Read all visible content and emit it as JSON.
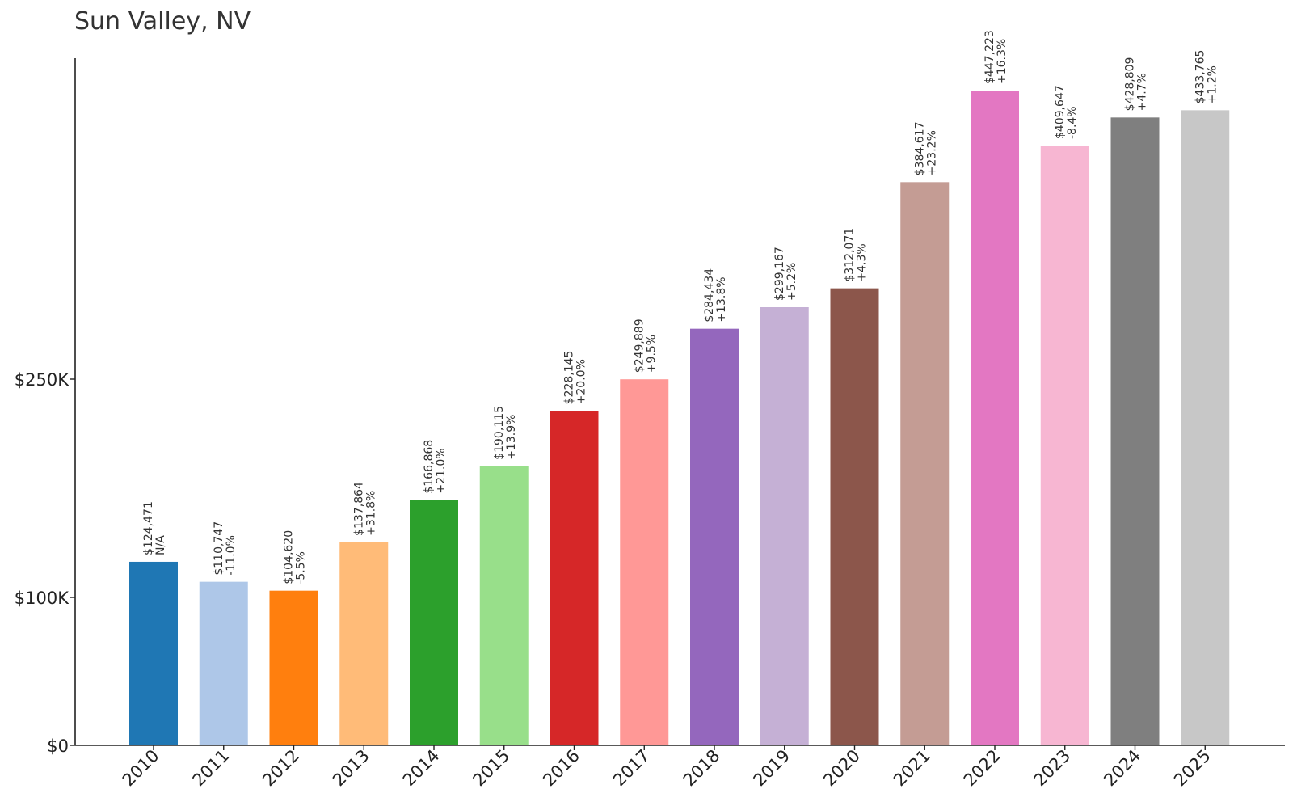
{
  "chart_data": {
    "type": "bar",
    "title": "Sun Valley, NV",
    "xlabel": "",
    "ylabel": "",
    "categories": [
      "2010",
      "2011",
      "2012",
      "2013",
      "2014",
      "2015",
      "2016",
      "2017",
      "2018",
      "2019",
      "2020",
      "2021",
      "2022",
      "2023",
      "2024",
      "2025"
    ],
    "values": [
      124471,
      110747,
      104620,
      137864,
      166868,
      190115,
      228145,
      249889,
      284434,
      299167,
      312071,
      384617,
      447223,
      409647,
      428809,
      433765
    ],
    "value_labels": [
      "$124,471",
      "$110,747",
      "$104,620",
      "$137,864",
      "$166,868",
      "$190,115",
      "$228,145",
      "$249,889",
      "$284,434",
      "$299,167",
      "$312,071",
      "$384,617",
      "$447,223",
      "$409,647",
      "$428,809",
      "$433,765"
    ],
    "change_labels": [
      "N/A",
      "-11.0%",
      "-5.5%",
      "+31.8%",
      "+21.0%",
      "+13.9%",
      "+20.0%",
      "+9.5%",
      "+13.8%",
      "+5.2%",
      "+4.3%",
      "+23.2%",
      "+16.3%",
      "-8.4%",
      "+4.7%",
      "+1.2%"
    ],
    "yticks": [
      0,
      100000,
      250000
    ],
    "ytick_labels": [
      "$0",
      "$100K",
      "$250K"
    ],
    "ylim": [
      0,
      470000
    ],
    "grid": false,
    "legend": "none",
    "colors": [
      "#1f77b4",
      "#aec7e8",
      "#ff7f0e",
      "#ffbb78",
      "#2ca02c",
      "#98df8a",
      "#d62728",
      "#ff9896",
      "#9467bd",
      "#c5b0d5",
      "#8c564b",
      "#c49c94",
      "#e377c2",
      "#f7b6d2",
      "#7f7f7f",
      "#c7c7c7"
    ]
  }
}
